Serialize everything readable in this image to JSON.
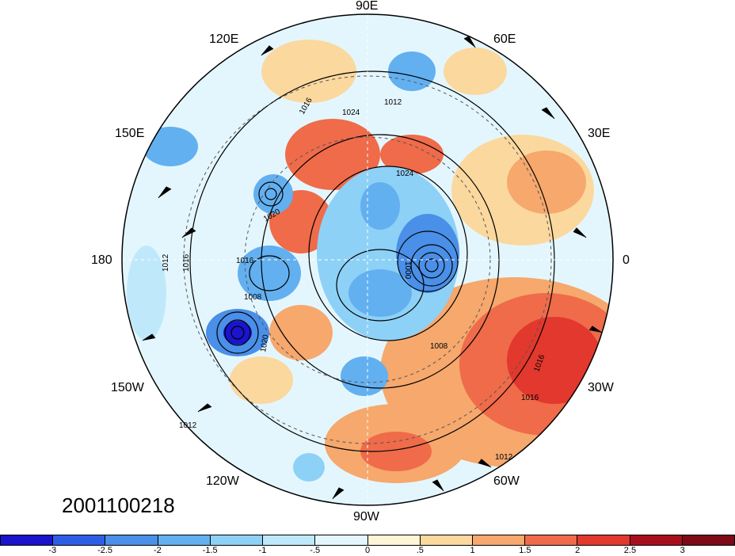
{
  "timestamp": "2001100218",
  "longitude_labels": {
    "e90": "90E",
    "e60": "60E",
    "e30": "30E",
    "e0": "0",
    "w30": "30W",
    "w60": "60W",
    "w90": "90W",
    "w120": "120W",
    "w150": "150W",
    "w180": "180",
    "e150": "150E",
    "e120": "120E"
  },
  "contour_labels": [
    "1024",
    "1012",
    "1016",
    "1024",
    "1020",
    "1012",
    "1016",
    "1016",
    "1008",
    "1020",
    "1000",
    "1008",
    "1016",
    "1016",
    "1012",
    "1012"
  ],
  "colorbar": {
    "ticks": [
      "-3",
      "-2.5",
      "-2",
      "-1.5",
      "-1",
      "-.5",
      "0",
      ".5",
      "1",
      "1.5",
      "2",
      "2.5",
      "3"
    ],
    "colors": [
      "#1a14cc",
      "#2f5ee6",
      "#4a8fe8",
      "#63b0f0",
      "#8ed1f7",
      "#bfe9fb",
      "#e4f6fd",
      "#fff5d6",
      "#fbd89e",
      "#f6a86d",
      "#ef6b4a",
      "#e3382d",
      "#a70f1d"
    ]
  }
}
